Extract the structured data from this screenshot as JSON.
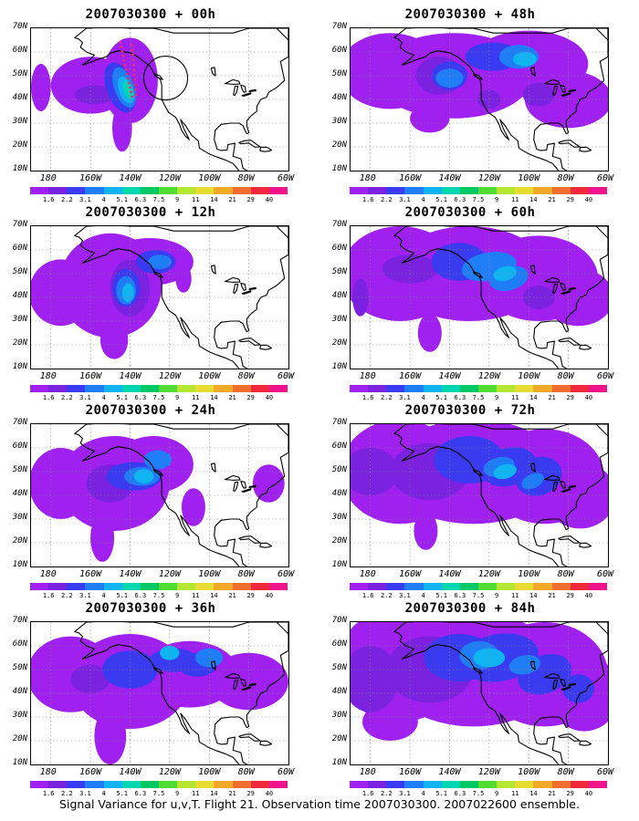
{
  "panels": [
    {
      "title": "2007030300 + 00h",
      "lead": 0,
      "show_track": true
    },
    {
      "title": "2007030300 + 48h",
      "lead": 48,
      "show_track": false
    },
    {
      "title": "2007030300 + 12h",
      "lead": 12,
      "show_track": false
    },
    {
      "title": "2007030300 + 60h",
      "lead": 60,
      "show_track": false
    },
    {
      "title": "2007030300 + 24h",
      "lead": 24,
      "show_track": false
    },
    {
      "title": "2007030300 + 72h",
      "lead": 72,
      "show_track": false
    },
    {
      "title": "2007030300 + 36h",
      "lead": 36,
      "show_track": false
    },
    {
      "title": "2007030300 + 84h",
      "lead": 84,
      "show_track": false
    }
  ],
  "axes": {
    "lat_labels": [
      "70N",
      "60N",
      "50N",
      "40N",
      "30N",
      "20N",
      "10N"
    ],
    "lon_labels": [
      "180",
      "160W",
      "140W",
      "120W",
      "100W",
      "80W",
      "60W"
    ]
  },
  "colorbar": {
    "levels": [
      "1.6",
      "2.2",
      "3.1",
      "4",
      "5.1",
      "6.3",
      "7.5",
      "9",
      "11",
      "14",
      "21",
      "29",
      "40"
    ],
    "colors": [
      "#a020f0",
      "#7a22e0",
      "#3a3af0",
      "#1f7ef5",
      "#10b4f0",
      "#00d7b0",
      "#00c864",
      "#50dc32",
      "#b4e632",
      "#e6dc32",
      "#f0aa28",
      "#f06e2d",
      "#f0283c",
      "#f0148c"
    ]
  },
  "caption": "Signal Variance for u,v,T. Flight 21. Observation time 2007030300. 2007022600 ensemble."
}
